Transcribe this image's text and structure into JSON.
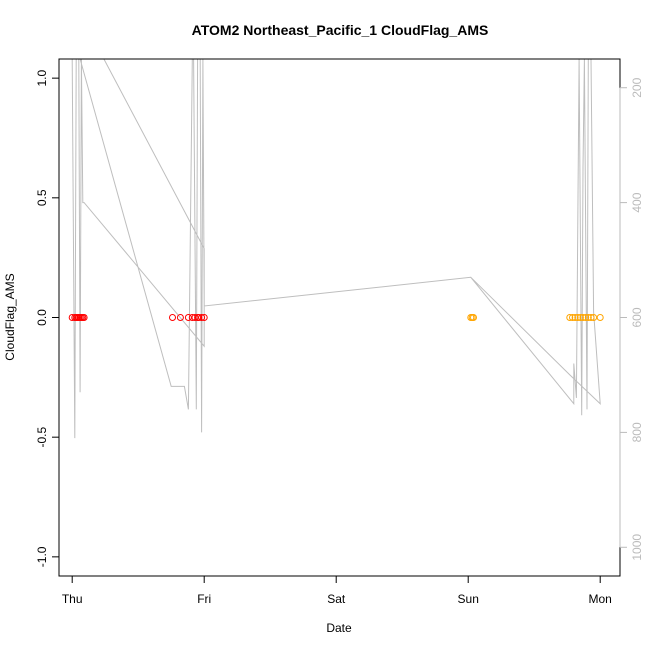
{
  "chart_data": {
    "type": "scatter",
    "title": "ATOM2 Northeast_Pacific_1 CloudFlag_AMS",
    "xlabel": "Date",
    "ylabel": "CloudFlag_AMS",
    "x_ticks": [
      {
        "x": 0,
        "label": "Thu"
      },
      {
        "x": 1,
        "label": "Fri"
      },
      {
        "x": 2,
        "label": "Sat"
      },
      {
        "x": 3,
        "label": "Sun"
      },
      {
        "x": 4,
        "label": "Mon"
      }
    ],
    "y_ticks": [
      -1.0,
      -0.5,
      0.0,
      0.5,
      1.0
    ],
    "y_tick_labels": [
      "-1.0",
      "-0.5",
      "0.0",
      "0.5",
      "1.0"
    ],
    "xlim": [
      -0.1,
      4.15
    ],
    "ylim": [
      -1.08,
      1.08
    ],
    "right_axis": {
      "ticks": [
        200,
        400,
        600,
        800,
        1000
      ],
      "tick_labels": [
        "200",
        "400",
        "600",
        "800",
        "1000"
      ],
      "lim": [
        1050,
        150
      ],
      "color": "#bbbbbb"
    },
    "grid": false,
    "series": [
      {
        "color": "#ff0000",
        "x": [
          0.0,
          0.02,
          0.03,
          0.04,
          0.05,
          0.06,
          0.07,
          0.08,
          0.09,
          0.76,
          0.82,
          0.88,
          0.91,
          0.93,
          0.95,
          0.96,
          0.98,
          1.0
        ],
        "y": [
          0,
          0,
          0,
          0,
          0,
          0,
          0,
          0,
          0,
          0,
          0,
          0,
          0,
          0,
          0,
          0,
          0,
          0
        ]
      },
      {
        "color": "#ffa500",
        "x": [
          3.02,
          3.03,
          3.04,
          3.77,
          3.79,
          3.81,
          3.83,
          3.85,
          3.87,
          3.89,
          3.91,
          3.93,
          3.95,
          4.0
        ],
        "y": [
          0,
          0,
          0,
          0,
          0,
          0,
          0,
          0,
          0,
          0,
          0,
          0,
          0,
          0
        ]
      }
    ],
    "trace": {
      "color": "#bebebe",
      "x": [
        0.0,
        0.02,
        0.03,
        0.05,
        0.06,
        0.07,
        0.09,
        0.1,
        0.24,
        1.0,
        1.0,
        0.09,
        0.08,
        0.07,
        0.06,
        0.75,
        0.85,
        0.88,
        0.91,
        0.92,
        0.94,
        0.95,
        0.97,
        0.98,
        0.99,
        1.0,
        3.02,
        3.8,
        3.8,
        3.82,
        3.84,
        3.86,
        3.87,
        3.88,
        3.9,
        3.91,
        3.92,
        3.93,
        3.95,
        4.0,
        3.77,
        3.02
      ],
      "z": [
        150,
        810,
        150,
        150,
        730,
        150,
        150,
        150,
        150,
        480,
        650,
        400,
        400,
        150,
        150,
        720,
        720,
        760,
        150,
        150,
        760,
        150,
        150,
        800,
        150,
        580,
        530,
        750,
        680,
        740,
        150,
        770,
        340,
        150,
        760,
        150,
        150,
        150,
        590,
        750,
        700,
        530
      ]
    }
  }
}
